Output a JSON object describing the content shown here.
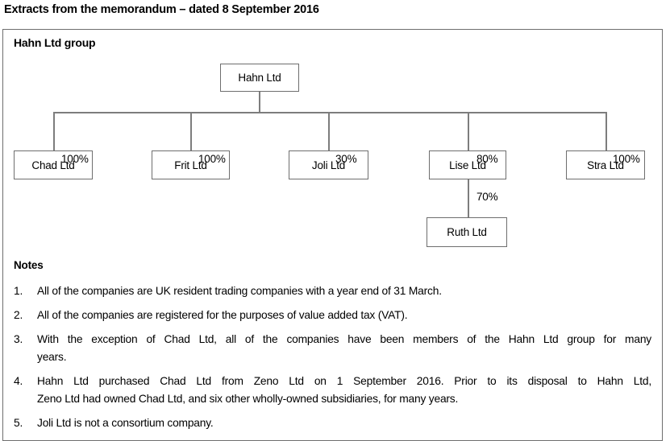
{
  "title": "Extracts from the memorandum – dated 8 September 2016",
  "group_box": {
    "heading": "Hahn Ltd group",
    "parent": {
      "name": "Hahn Ltd"
    },
    "subsidiaries": [
      {
        "name": "Chad Ltd",
        "pct": "100%"
      },
      {
        "name": "Frit Ltd",
        "pct": "100%"
      },
      {
        "name": "Joli Ltd",
        "pct": "30%"
      },
      {
        "name": "Lise Ltd",
        "pct": "80%"
      },
      {
        "name": "Stra Ltd",
        "pct": "100%"
      }
    ],
    "sub_subsidiary": {
      "name": "Ruth Ltd",
      "pct": "70%",
      "owned_by": "Lise Ltd"
    }
  },
  "notes": {
    "heading": "Notes",
    "items": [
      {
        "num": "1.",
        "lines": [
          "All of the companies are UK resident trading companies with a year end of 31 March."
        ]
      },
      {
        "num": "2.",
        "lines": [
          "All of the companies are registered for the purposes of value added tax (VAT)."
        ]
      },
      {
        "num": "3.",
        "lines": [
          "With the exception of Chad Ltd, all of the companies have been members of the Hahn Ltd group for many",
          "years."
        ]
      },
      {
        "num": "4.",
        "lines": [
          "Hahn Ltd purchased Chad Ltd from Zeno Ltd on 1 September 2016. Prior to its disposal to Hahn Ltd,",
          "Zeno Ltd had owned Chad Ltd, and six other wholly-owned subsidiaries, for many years."
        ]
      },
      {
        "num": "5.",
        "lines": [
          "Joli Ltd is not a consortium company."
        ]
      }
    ]
  },
  "colors": {
    "border_gray": "#6e6e6e",
    "line_gray": "#7d7d7d",
    "text": "#000000",
    "background": "#ffffff"
  }
}
